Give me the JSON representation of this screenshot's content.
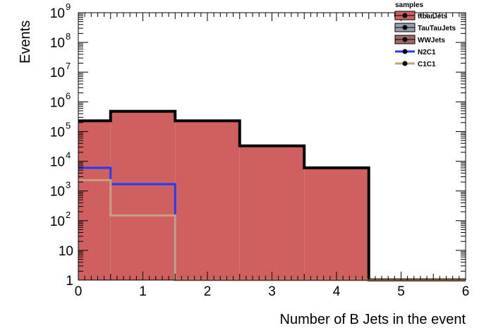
{
  "chart_data": {
    "type": "bar",
    "subtype": "stacked-histogram-log",
    "xlabel": "Number of B Jets in the event",
    "ylabel": "Events",
    "xlim": [
      0,
      6
    ],
    "ylim": [
      1,
      1000000000
    ],
    "yscale": "log",
    "x_ticks": [
      "0",
      "1",
      "2",
      "3",
      "4",
      "5",
      "6"
    ],
    "y_ticks": [
      {
        "value": 1,
        "label": "1",
        "exp": ""
      },
      {
        "value": 10,
        "label": "10",
        "exp": ""
      },
      {
        "value": 100,
        "label": "10",
        "exp": "2"
      },
      {
        "value": 1000,
        "label": "10",
        "exp": "3"
      },
      {
        "value": 10000,
        "label": "10",
        "exp": "4"
      },
      {
        "value": 100000,
        "label": "10",
        "exp": "5"
      },
      {
        "value": 1000000,
        "label": "10",
        "exp": "6"
      },
      {
        "value": 10000000,
        "label": "10",
        "exp": "7"
      },
      {
        "value": 100000000,
        "label": "10",
        "exp": "8"
      },
      {
        "value": 1000000000,
        "label": "10",
        "exp": "9"
      }
    ],
    "bin_edges": [
      -0.5,
      0.5,
      1.5,
      2.5,
      3.5,
      4.5,
      5.5,
      6.5
    ],
    "stack_total": [
      230000,
      480000,
      230000,
      33000,
      6000,
      1,
      1
    ],
    "legend": {
      "title": "samples",
      "position": "top-right",
      "entries": [
        {
          "name": "ttbarJets",
          "style": "fill",
          "color": "#d06060"
        },
        {
          "name": "TauTauJets",
          "style": "fill",
          "color": "#9aa0aa"
        },
        {
          "name": "WWJets",
          "style": "fill",
          "color": "#a06a6a"
        },
        {
          "name": "N2C1",
          "style": "line",
          "color": "#1f3cff"
        },
        {
          "name": "C1C1",
          "style": "line",
          "color": "#c8a080"
        }
      ]
    },
    "series": [
      {
        "name": "ttbarJets",
        "kind": "stacked",
        "color": "#d06060",
        "values": [
          230000,
          480000,
          230000,
          33000,
          6000,
          0,
          0
        ]
      },
      {
        "name": "TauTauJets",
        "kind": "stacked",
        "color": "#9aa0aa",
        "values": [
          0,
          0,
          0,
          0,
          0,
          0,
          0
        ]
      },
      {
        "name": "WWJets",
        "kind": "stacked",
        "color": "#a06a6a",
        "values": [
          0,
          0,
          0,
          0,
          0,
          0,
          0
        ]
      },
      {
        "name": "N2C1",
        "kind": "overlay",
        "color": "#1f3cff",
        "values": [
          6000,
          1700,
          1,
          1,
          1,
          1,
          1
        ]
      },
      {
        "name": "C1C1",
        "kind": "overlay",
        "color": "#c8a080",
        "values": [
          2300,
          150,
          1,
          1,
          1,
          1,
          1
        ]
      }
    ],
    "grid": false
  }
}
